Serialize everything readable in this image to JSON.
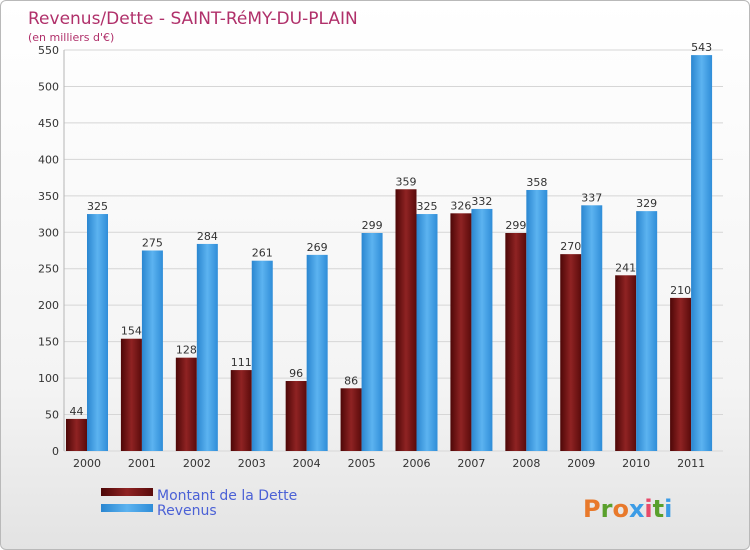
{
  "colors": {
    "title": "#b0306a",
    "dette": "#7a1414",
    "revenus": "#3c9ce6",
    "legend_text": "#4b61d6"
  },
  "logo": {
    "text": "Proxiti",
    "letter_colors": [
      "#e8792b",
      "#5aa02c",
      "#e8792b",
      "#3c9ce6",
      "#e84a6a",
      "#5aa02c",
      "#3c9ce6"
    ]
  },
  "chart_data": {
    "type": "bar",
    "title": "Revenus/Dette - SAINT-RéMY-DU-PLAIN",
    "subtitle": "(en milliers d'€)",
    "xlabel": "",
    "ylabel": "",
    "ylim": [
      0,
      550
    ],
    "yticks": [
      0,
      50,
      100,
      150,
      200,
      250,
      300,
      350,
      400,
      450,
      500,
      550
    ],
    "grid": true,
    "legend_position": "bottom-left",
    "categories": [
      "2000",
      "2001",
      "2002",
      "2003",
      "2004",
      "2005",
      "2006",
      "2007",
      "2008",
      "2009",
      "2010",
      "2011"
    ],
    "series": [
      {
        "name": "Montant de la Dette",
        "values": [
          44,
          154,
          128,
          111,
          96,
          86,
          359,
          326,
          299,
          270,
          241,
          210
        ]
      },
      {
        "name": "Revenus",
        "values": [
          325,
          275,
          284,
          261,
          269,
          299,
          325,
          332,
          358,
          337,
          329,
          543
        ]
      }
    ]
  }
}
